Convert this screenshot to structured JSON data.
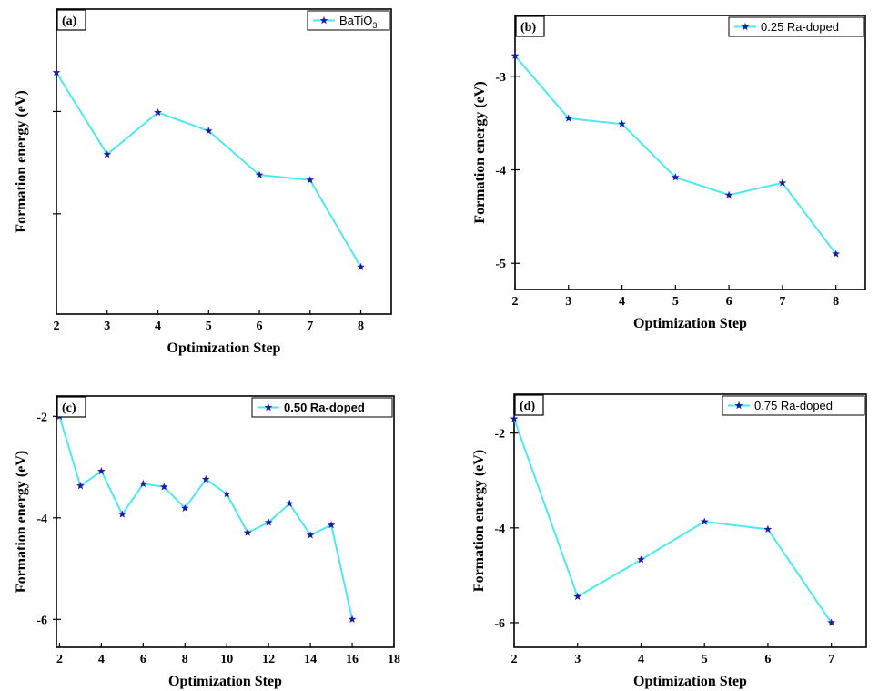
{
  "colors": {
    "line": "#4de8f0",
    "marker": "#1a1aa6"
  },
  "chart_data": [
    {
      "type": "line",
      "panel": "(a)",
      "xlabel": "Optimization Step",
      "ylabel": "Formation energy (eV)",
      "x": [
        2,
        3,
        4,
        5,
        6,
        7,
        8
      ],
      "series": [
        {
          "name": "BaTiO",
          "name_sub": "3",
          "values": [
            -2.62,
            -3.42,
            -3.01,
            -3.19,
            -3.62,
            -3.67,
            -4.52
          ]
        }
      ],
      "xlim": [
        2,
        8.6
      ],
      "ylim": [
        -4.98,
        -2.0
      ],
      "xticks": [
        2,
        3,
        4,
        5,
        6,
        7,
        8
      ],
      "xtick_labels": [
        "2",
        "3",
        "4",
        "5",
        "6",
        "7",
        "8"
      ],
      "yticks": [
        -3,
        -4
      ],
      "ytick_labels": [
        "",
        ""
      ],
      "legend": "top-right"
    },
    {
      "type": "line",
      "panel": "(b)",
      "xlabel": "Optimization Step",
      "ylabel": "Formation energy (eV)",
      "x": [
        2,
        3,
        4,
        5,
        6,
        7,
        8
      ],
      "series": [
        {
          "name": "0.25 Ra-doped",
          "values": [
            -2.78,
            -3.45,
            -3.51,
            -4.08,
            -4.27,
            -4.14,
            -4.9
          ]
        }
      ],
      "xlim": [
        2,
        8.55
      ],
      "ylim": [
        -5.28,
        -2.35
      ],
      "xticks": [
        2,
        3,
        4,
        5,
        6,
        7,
        8
      ],
      "xtick_labels": [
        "2",
        "3",
        "4",
        "5",
        "6",
        "7",
        "8"
      ],
      "yticks": [
        -3,
        -4,
        -5
      ],
      "ytick_labels": [
        "-3",
        "-4",
        "-5"
      ],
      "legend": "top-right"
    },
    {
      "type": "line",
      "panel": "(c)",
      "xlabel": "Optimization Step",
      "ylabel": "Formation energy (eV)",
      "x": [
        2,
        3,
        4,
        5,
        6,
        7,
        8,
        9,
        10,
        11,
        12,
        13,
        14,
        15,
        16
      ],
      "series": [
        {
          "name": "0.50 Ra-doped",
          "values": [
            -2.0,
            -3.37,
            -3.08,
            -3.93,
            -3.33,
            -3.39,
            -3.81,
            -3.24,
            -3.53,
            -4.29,
            -4.09,
            -3.72,
            -4.34,
            -4.14,
            -6.0
          ]
        }
      ],
      "xlim": [
        1.85,
        18
      ],
      "ylim": [
        -6.55,
        -1.6
      ],
      "xticks": [
        2,
        4,
        6,
        8,
        10,
        12,
        14,
        16,
        18
      ],
      "xtick_labels": [
        "2",
        "4",
        "6",
        "8",
        "10",
        "12",
        "14",
        "16",
        "18"
      ],
      "yticks": [
        -2,
        -4,
        -6
      ],
      "ytick_labels": [
        "-2",
        "-4",
        "-6"
      ],
      "legend": "top-right"
    },
    {
      "type": "line",
      "panel": "(d)",
      "xlabel": "Optimization Step",
      "ylabel": "Formation energy (eV)",
      "x": [
        2,
        3,
        4,
        5,
        6,
        7
      ],
      "series": [
        {
          "name": "0.75 Ra-doped",
          "values": [
            -1.7,
            -5.45,
            -4.67,
            -3.87,
            -4.03,
            -6.0
          ]
        }
      ],
      "xlim": [
        2,
        7.55
      ],
      "ylim": [
        -6.52,
        -1.18
      ],
      "xticks": [
        2,
        3,
        4,
        5,
        6,
        7
      ],
      "xtick_labels": [
        "2",
        "3",
        "4",
        "5",
        "6",
        "7"
      ],
      "yticks": [
        -2,
        -4,
        -6
      ],
      "ytick_labels": [
        "-2",
        "-4",
        "-6"
      ],
      "legend": "top-right"
    }
  ]
}
